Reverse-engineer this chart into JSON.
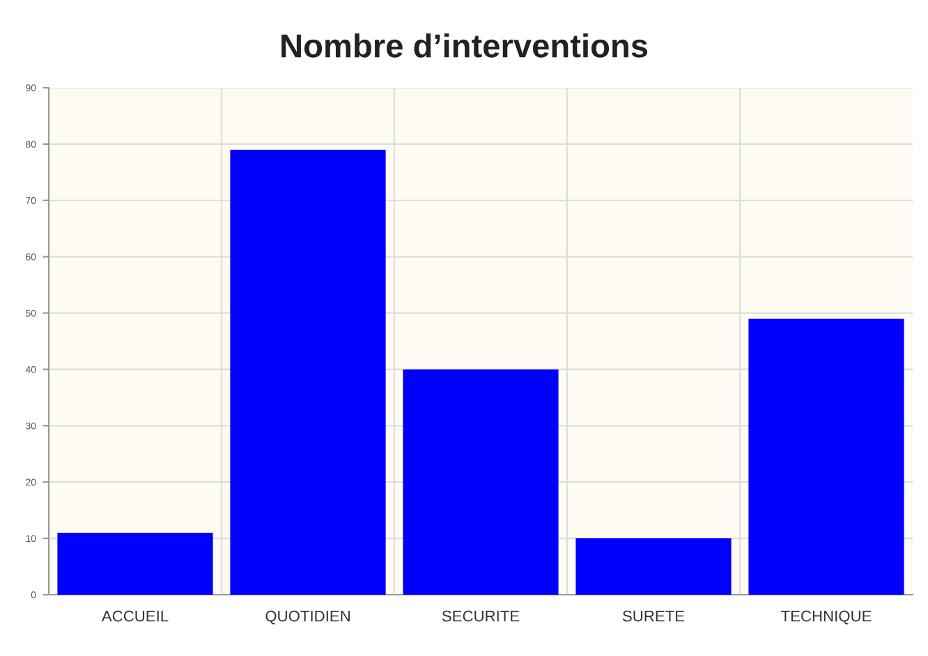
{
  "chart_data": {
    "type": "bar",
    "title": "Nombre d’interventions",
    "categories": [
      "ACCUEIL",
      "QUOTIDIEN",
      "SECURITE",
      "SURETE",
      "TECHNIQUE"
    ],
    "values": [
      11,
      79,
      40,
      10,
      49
    ],
    "color": "#0000ff",
    "ylim": [
      0,
      90
    ],
    "yticks": [
      0,
      10,
      20,
      30,
      40,
      50,
      60,
      70,
      80,
      90
    ],
    "grid": true
  }
}
